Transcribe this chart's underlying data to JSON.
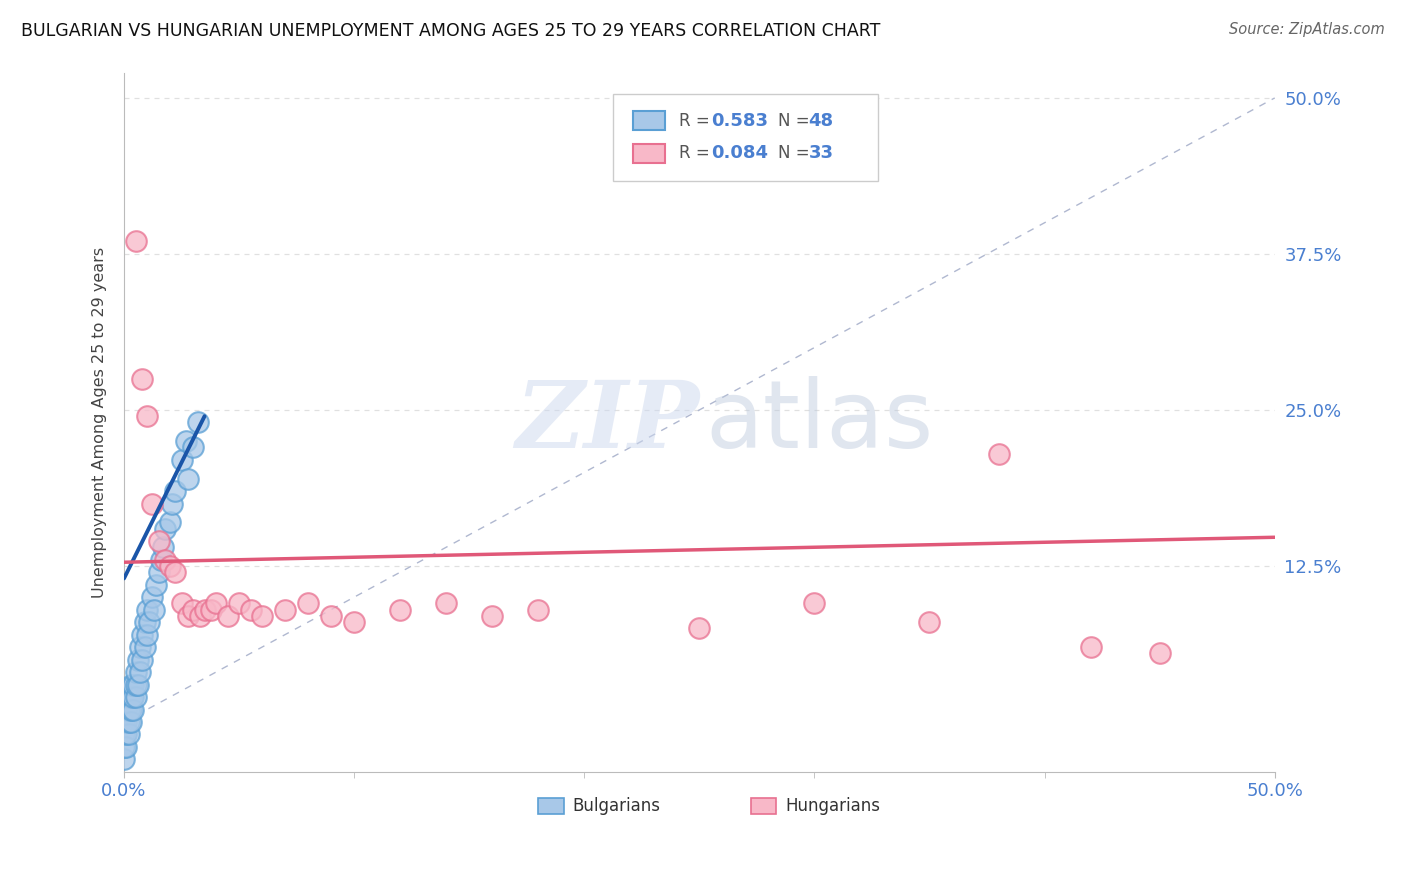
{
  "title": "BULGARIAN VS HUNGARIAN UNEMPLOYMENT AMONG AGES 25 TO 29 YEARS CORRELATION CHART",
  "source": "Source: ZipAtlas.com",
  "ylabel": "Unemployment Among Ages 25 to 29 years",
  "xlim": [
    0.0,
    0.5
  ],
  "ylim": [
    -0.04,
    0.52
  ],
  "bg_dot_color": "#a8c8e8",
  "bg_dot_edge_color": "#5a9fd4",
  "hu_dot_color": "#f8b8c8",
  "hu_dot_edge_color": "#e87090",
  "bg_line_color": "#1a55a8",
  "hu_line_color": "#e05878",
  "ref_line_color": "#b0b8d0",
  "axis_label_color": "#4a7fd0",
  "grid_color": "#e0e0e0",
  "title_color": "#111111",
  "source_color": "#666666",
  "R_bg": "0.583",
  "N_bg": "48",
  "R_hu": "0.084",
  "N_hu": "33",
  "legend_label_bg": "Bulgarians",
  "legend_label_hu": "Hungarians",
  "bg_x": [
    0.0,
    0.0,
    0.0,
    0.0,
    0.001,
    0.001,
    0.001,
    0.001,
    0.002,
    0.002,
    0.002,
    0.002,
    0.003,
    0.003,
    0.003,
    0.003,
    0.004,
    0.004,
    0.004,
    0.005,
    0.005,
    0.005,
    0.006,
    0.006,
    0.007,
    0.007,
    0.008,
    0.008,
    0.009,
    0.009,
    0.01,
    0.01,
    0.011,
    0.012,
    0.013,
    0.014,
    0.015,
    0.016,
    0.017,
    0.018,
    0.02,
    0.021,
    0.022,
    0.025,
    0.027,
    0.028,
    0.03,
    0.032
  ],
  "bg_y": [
    -0.03,
    -0.02,
    -0.01,
    0.0,
    -0.02,
    -0.01,
    0.0,
    0.01,
    -0.01,
    0.0,
    0.01,
    0.02,
    0.0,
    0.01,
    0.02,
    0.03,
    0.01,
    0.02,
    0.03,
    0.02,
    0.03,
    0.04,
    0.03,
    0.05,
    0.04,
    0.06,
    0.05,
    0.07,
    0.06,
    0.08,
    0.07,
    0.09,
    0.08,
    0.1,
    0.09,
    0.11,
    0.12,
    0.13,
    0.14,
    0.155,
    0.16,
    0.175,
    0.185,
    0.21,
    0.225,
    0.195,
    0.22,
    0.24
  ],
  "hu_x": [
    0.005,
    0.008,
    0.01,
    0.012,
    0.015,
    0.018,
    0.02,
    0.022,
    0.025,
    0.028,
    0.03,
    0.033,
    0.035,
    0.038,
    0.04,
    0.045,
    0.05,
    0.055,
    0.06,
    0.07,
    0.08,
    0.09,
    0.1,
    0.12,
    0.14,
    0.16,
    0.18,
    0.25,
    0.3,
    0.35,
    0.38,
    0.42,
    0.45
  ],
  "hu_y": [
    0.385,
    0.275,
    0.245,
    0.175,
    0.145,
    0.13,
    0.125,
    0.12,
    0.095,
    0.085,
    0.09,
    0.085,
    0.09,
    0.09,
    0.095,
    0.085,
    0.095,
    0.09,
    0.085,
    0.09,
    0.095,
    0.085,
    0.08,
    0.09,
    0.095,
    0.085,
    0.09,
    0.075,
    0.095,
    0.08,
    0.215,
    0.06,
    0.055
  ],
  "bg_trend": [
    0.0,
    0.035
  ],
  "bg_trend_y": [
    0.115,
    0.245
  ],
  "hu_trend": [
    0.0,
    0.5
  ],
  "hu_trend_y": [
    0.128,
    0.148
  ]
}
